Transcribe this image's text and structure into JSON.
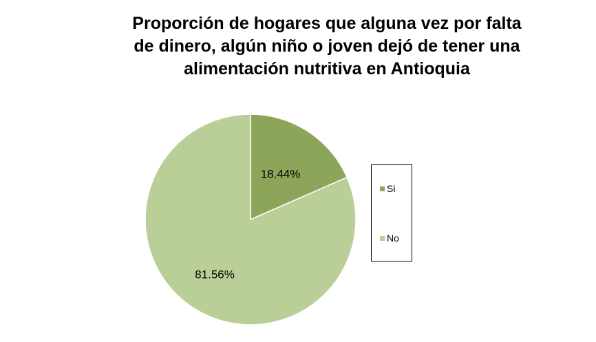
{
  "chart_data": {
    "type": "pie",
    "title_lines": [
      "Proporción de hogares que alguna vez por falta",
      "de dinero, algún niño o joven dejó de tener una",
      "alimentación nutritiva en Antioquia"
    ],
    "slices": [
      {
        "name": "Si",
        "value": 18.44,
        "label": "18.44%",
        "color": "#8ca55a"
      },
      {
        "name": "No",
        "value": 81.56,
        "label": "81.56%",
        "color": "#bacf98"
      }
    ],
    "legend": {
      "position": "right"
    }
  }
}
